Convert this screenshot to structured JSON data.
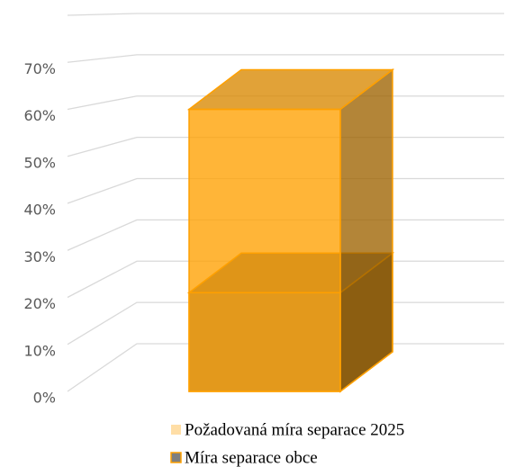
{
  "chart_data": {
    "type": "bar3d",
    "categories": [
      null
    ],
    "series": [
      {
        "name": "Požadovaná míra separace 2025",
        "color": "#ffa000",
        "values": [
          60
        ]
      },
      {
        "name": "Míra separace obce",
        "color": "#7f7f7f",
        "values": [
          21
        ]
      }
    ],
    "ylim": [
      0,
      80
    ],
    "yticks": [
      {
        "value": 0,
        "label": "0%"
      },
      {
        "value": 10,
        "label": "10%"
      },
      {
        "value": 20,
        "label": "20%"
      },
      {
        "value": 30,
        "label": "30%"
      },
      {
        "value": 40,
        "label": "40%"
      },
      {
        "value": 50,
        "label": "50%"
      },
      {
        "value": 60,
        "label": "60%"
      },
      {
        "value": 70,
        "label": "70%"
      }
    ],
    "grid": true
  }
}
